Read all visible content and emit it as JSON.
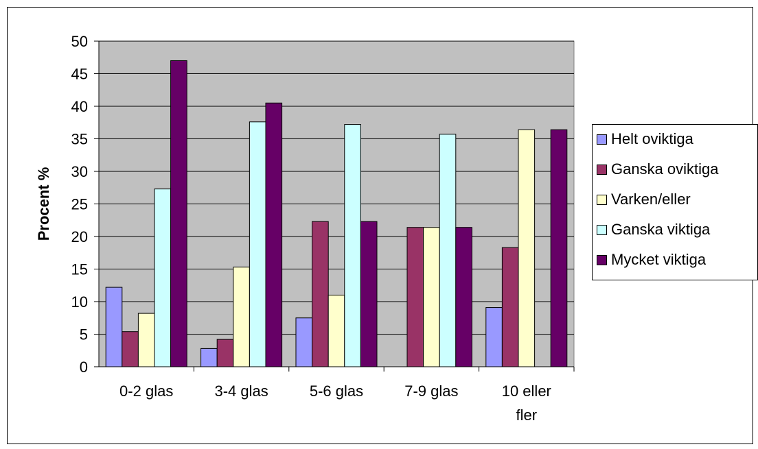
{
  "chart_data": {
    "type": "bar",
    "ylabel": "Procent %",
    "xlabel": "",
    "ylim": [
      0,
      50
    ],
    "ytick_step": 5,
    "yticks": [
      "0",
      "5",
      "10",
      "15",
      "20",
      "25",
      "30",
      "35",
      "40",
      "45",
      "50"
    ],
    "grid": true,
    "legend_position": "right",
    "plot_background": "#c0c0c0",
    "categories": [
      "0-2 glas",
      "3-4 glas",
      "5-6 glas",
      "7-9 glas",
      "10 eller fler"
    ],
    "series": [
      {
        "name": "Helt oviktiga",
        "color": "#9999ff",
        "values": [
          12.2,
          2.8,
          7.5,
          0,
          9.1
        ]
      },
      {
        "name": "Ganska oviktiga",
        "color": "#993366",
        "values": [
          5.4,
          4.2,
          22.3,
          21.4,
          18.3
        ]
      },
      {
        "name": "Varken/eller",
        "color": "#ffffcc",
        "values": [
          8.2,
          15.3,
          11.0,
          21.4,
          36.4
        ]
      },
      {
        "name": "Ganska viktiga",
        "color": "#ccffff",
        "values": [
          27.3,
          37.6,
          37.2,
          35.7,
          0
        ]
      },
      {
        "name": "Mycket viktiga",
        "color": "#660066",
        "values": [
          47.0,
          40.5,
          22.3,
          21.4,
          36.4
        ]
      }
    ]
  }
}
